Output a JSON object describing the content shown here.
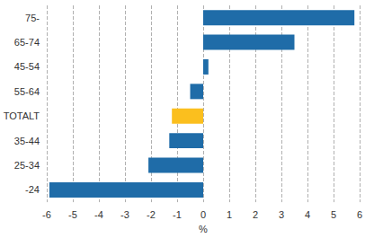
{
  "chart_data": {
    "type": "bar",
    "orientation": "horizontal",
    "categories": [
      "-24",
      "25-34",
      "35-44",
      "TOTALT",
      "55-64",
      "45-54",
      "65-74",
      "75-"
    ],
    "values": [
      -5.9,
      -2.1,
      -1.3,
      -1.2,
      -0.5,
      0.2,
      3.5,
      5.8
    ],
    "colors": [
      "#1f6ca8",
      "#1f6ca8",
      "#1f6ca8",
      "#fbbf1e",
      "#1f6ca8",
      "#1f6ca8",
      "#1f6ca8",
      "#1f6ca8"
    ],
    "xlabel": "%",
    "xlim": [
      -6,
      6
    ],
    "xticks": [
      -6,
      -5,
      -4,
      -3,
      -2,
      -1,
      0,
      1,
      2,
      3,
      4,
      5,
      6
    ],
    "grid": true
  }
}
